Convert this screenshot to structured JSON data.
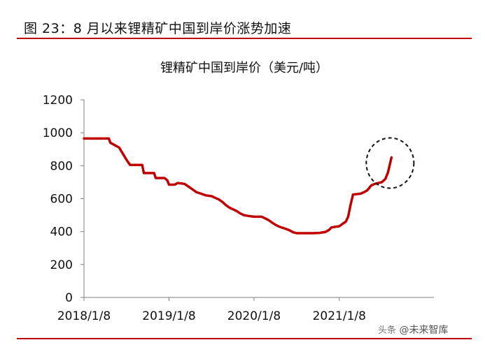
{
  "figure": {
    "title": "图 23：8 月以来锂精矿中国到岸价涨势加速",
    "watermark_prefix": "头条",
    "watermark_text": "@未来智库"
  },
  "chart_data": {
    "type": "line",
    "title": "锂精矿中国到岸价（美元/吨）",
    "xlabel": "",
    "ylabel": "",
    "ylim": [
      0,
      1200
    ],
    "yticks": [
      0,
      200,
      400,
      600,
      800,
      1000,
      1200
    ],
    "xtick_labels": [
      "2018/1/8",
      "2019/1/8",
      "2020/1/8",
      "2021/1/8"
    ],
    "xlim": [
      "2018-01-08",
      "2021-10-15"
    ],
    "series": [
      {
        "color": "#c00000",
        "points": [
          [
            "2018-01-08",
            965
          ],
          [
            "2018-04-25",
            965
          ],
          [
            "2018-05-01",
            940
          ],
          [
            "2018-05-20",
            925
          ],
          [
            "2018-06-08",
            910
          ],
          [
            "2018-06-25",
            870
          ],
          [
            "2018-07-10",
            835
          ],
          [
            "2018-07-25",
            805
          ],
          [
            "2018-09-15",
            805
          ],
          [
            "2018-09-22",
            755
          ],
          [
            "2018-11-05",
            755
          ],
          [
            "2018-11-12",
            725
          ],
          [
            "2018-12-20",
            725
          ],
          [
            "2019-01-01",
            710
          ],
          [
            "2019-01-08",
            685
          ],
          [
            "2019-02-01",
            685
          ],
          [
            "2019-02-15",
            695
          ],
          [
            "2019-03-15",
            690
          ],
          [
            "2019-04-05",
            670
          ],
          [
            "2019-04-20",
            655
          ],
          [
            "2019-05-05",
            640
          ],
          [
            "2019-05-25",
            630
          ],
          [
            "2019-06-15",
            620
          ],
          [
            "2019-07-10",
            615
          ],
          [
            "2019-07-25",
            605
          ],
          [
            "2019-08-10",
            595
          ],
          [
            "2019-08-25",
            580
          ],
          [
            "2019-09-10",
            560
          ],
          [
            "2019-09-25",
            545
          ],
          [
            "2019-10-10",
            535
          ],
          [
            "2019-10-25",
            525
          ],
          [
            "2019-11-10",
            510
          ],
          [
            "2019-11-25",
            500
          ],
          [
            "2019-12-15",
            495
          ],
          [
            "2020-01-08",
            490
          ],
          [
            "2020-02-10",
            490
          ],
          [
            "2020-02-25",
            480
          ],
          [
            "2020-03-10",
            470
          ],
          [
            "2020-03-25",
            455
          ],
          [
            "2020-04-10",
            440
          ],
          [
            "2020-04-25",
            430
          ],
          [
            "2020-05-15",
            420
          ],
          [
            "2020-06-05",
            410
          ],
          [
            "2020-06-25",
            395
          ],
          [
            "2020-07-10",
            390
          ],
          [
            "2020-08-15",
            390
          ],
          [
            "2020-09-15",
            390
          ],
          [
            "2020-10-15",
            392
          ],
          [
            "2020-11-10",
            398
          ],
          [
            "2020-11-25",
            410
          ],
          [
            "2020-12-05",
            425
          ],
          [
            "2020-12-25",
            430
          ],
          [
            "2021-01-08",
            432
          ],
          [
            "2021-01-20",
            445
          ],
          [
            "2021-02-05",
            460
          ],
          [
            "2021-02-15",
            490
          ],
          [
            "2021-02-25",
            560
          ],
          [
            "2021-03-08",
            625
          ],
          [
            "2021-04-10",
            630
          ],
          [
            "2021-04-25",
            640
          ],
          [
            "2021-05-08",
            650
          ],
          [
            "2021-05-25",
            680
          ],
          [
            "2021-06-10",
            690
          ],
          [
            "2021-06-25",
            695
          ],
          [
            "2021-07-10",
            700
          ],
          [
            "2021-07-25",
            720
          ],
          [
            "2021-08-05",
            760
          ],
          [
            "2021-08-15",
            820
          ],
          [
            "2021-08-20",
            850
          ]
        ]
      }
    ],
    "annotation": {
      "type": "dashed-ellipse",
      "label": ""
    }
  },
  "colors": {
    "series": "#c00000",
    "rule": "#c00000",
    "axis": "#7f7f7f",
    "text": "#111111"
  }
}
